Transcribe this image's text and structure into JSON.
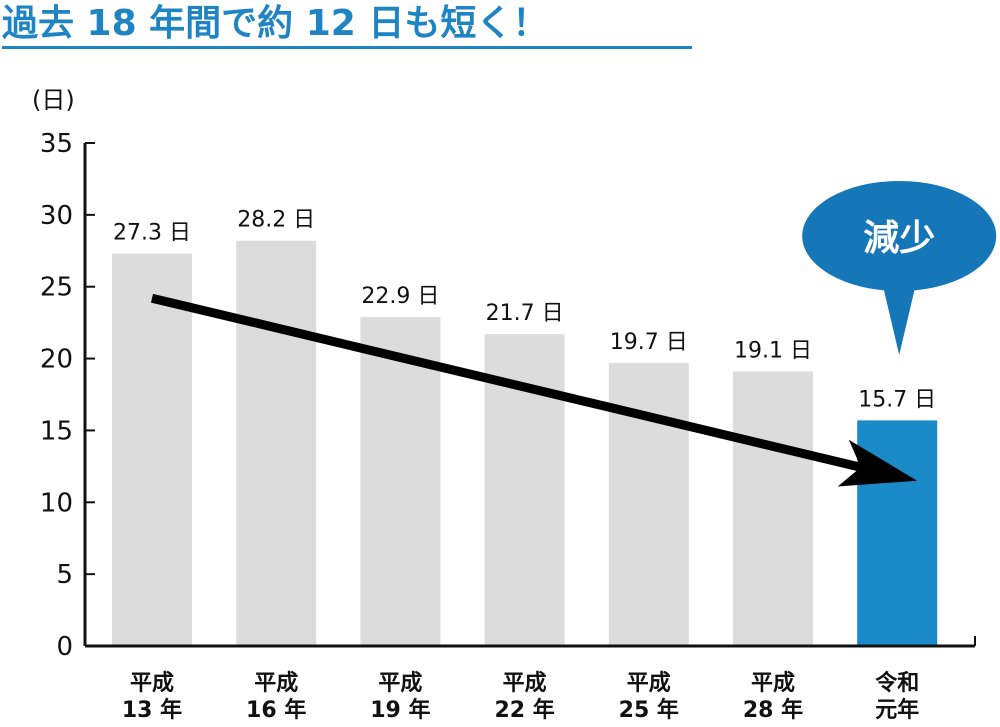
{
  "headline": "過去 18 年間で約 12 日も短く！",
  "callout": "減少",
  "colors": {
    "accent": "#1f84c3",
    "bar_default": "#dcdcdc",
    "bar_highlight": "#1a8bc8",
    "callout_fill": "#1576b8",
    "arrow": "#000000"
  },
  "chart_data": {
    "type": "bar",
    "title": "",
    "ylabel": "(日)",
    "xlabel": "",
    "ylim": [
      0,
      35
    ],
    "yticks": [
      0,
      5,
      10,
      15,
      20,
      25,
      30,
      35
    ],
    "grid": false,
    "categories": [
      [
        "平成",
        "13 年"
      ],
      [
        "平成",
        "16 年"
      ],
      [
        "平成",
        "19 年"
      ],
      [
        "平成",
        "22 年"
      ],
      [
        "平成",
        "25 年"
      ],
      [
        "平成",
        "28 年"
      ],
      [
        "令和",
        "元年"
      ]
    ],
    "values": [
      27.3,
      28.2,
      22.9,
      21.7,
      19.7,
      19.1,
      15.7
    ],
    "value_labels": [
      "27.3 日",
      "28.2 日",
      "22.9 日",
      "21.7 日",
      "19.7 日",
      "19.1 日",
      "15.7 日"
    ],
    "highlight_index": 6,
    "trend_arrow": {
      "from_index": 0,
      "from_value": 24.2,
      "to_index": 6,
      "to_value": 11.5
    }
  }
}
